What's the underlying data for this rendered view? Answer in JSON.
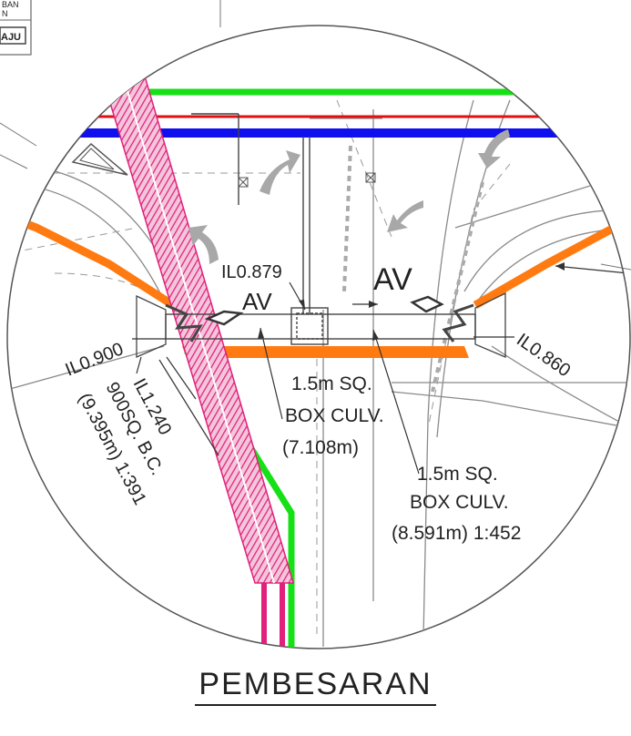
{
  "detail_title": "PEMBESARAN",
  "corner_block": {
    "line1": "BAN",
    "line2": "N",
    "tag": "AJU"
  },
  "labels": {
    "il_879": "IL0.879",
    "il_900": "IL0.900",
    "il_860": "IL0.860",
    "il_1240": "IL1.240",
    "av_left": "AV",
    "av_right": "AV",
    "box_culv_a_l1": "1.5m SQ.",
    "box_culv_a_l2": "BOX CULV.",
    "box_culv_a_l3": "(7.108m)",
    "box_culv_b_l1": "1.5m SQ.",
    "box_culv_b_l2": "BOX CULV.",
    "box_culv_b_l3": "(8.591m) 1:452",
    "bc_l1": "900SQ.  B.C.",
    "bc_l2": "(9.395m) 1:391"
  },
  "colors": {
    "green": "#16e016",
    "red": "#e01010",
    "blue": "#1010ee",
    "orange": "#ff7a10",
    "magenta": "#e0207a",
    "linework": "#444444",
    "grey": "#9a9a9a"
  }
}
